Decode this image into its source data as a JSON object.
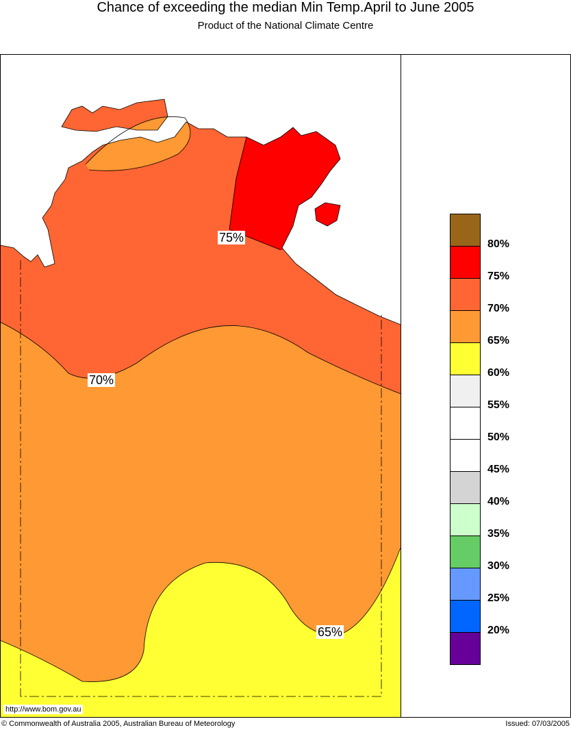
{
  "title": "Chance of exceeding the median Min Temp.April to June 2005",
  "subtitle": "Product of the National Climate Centre",
  "map_labels": {
    "l75": "75%",
    "l70": "70%",
    "l65": "65%"
  },
  "legend": {
    "colors": [
      "#996619",
      "#ff0000",
      "#ff6633",
      "#ff9933",
      "#ffff33",
      "#f0f0f0",
      "#ffffff",
      "#ffffff",
      "#d4d4d4",
      "#ccffcc",
      "#66cc66",
      "#6699ff",
      "#0066ff",
      "#660099"
    ],
    "labels": [
      "80%",
      "75%",
      "70%",
      "65%",
      "60%",
      "55%",
      "50%",
      "45%",
      "40%",
      "35%",
      "30%",
      "25%",
      "20%"
    ]
  },
  "footer": {
    "url": "http://www.bom.gov.au",
    "copyright": "© Commonwealth of Australia 2005, Australian Bureau of Meteorology",
    "issued": "Issued: 07/03/2005"
  }
}
